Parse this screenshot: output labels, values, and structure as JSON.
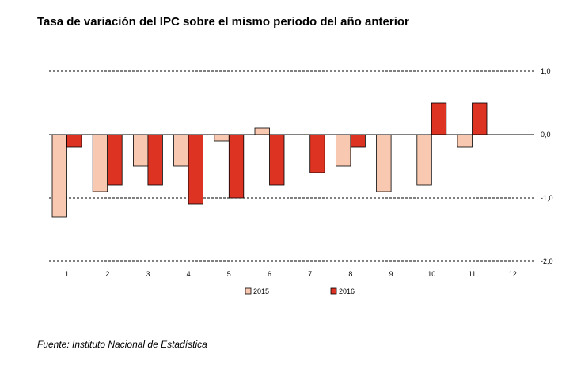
{
  "title": "Tasa de variación del IPC sobre el mismo periodo del año anterior",
  "source": "Fuente: Instituto Nacional de Estadística",
  "colors": {
    "s2015": "#f9c8b0",
    "s2016": "#dd3322",
    "stroke": "#000000"
  },
  "chart_data": {
    "type": "bar",
    "title": "Tasa de variación del IPC sobre el mismo periodo del año anterior",
    "xlabel": "",
    "ylabel": "",
    "categories": [
      "1",
      "2",
      "3",
      "4",
      "5",
      "6",
      "7",
      "8",
      "9",
      "10",
      "11",
      "12"
    ],
    "series": [
      {
        "name": "2015",
        "values": [
          -1.3,
          -0.9,
          -0.5,
          -0.5,
          -0.1,
          0.1,
          null,
          -0.5,
          -0.9,
          -0.8,
          -0.2,
          null
        ]
      },
      {
        "name": "2016",
        "values": [
          -0.2,
          -0.8,
          -0.8,
          -1.1,
          -1.0,
          -0.8,
          -0.6,
          -0.2,
          null,
          0.5,
          0.5,
          null
        ]
      }
    ],
    "ylim": [
      -2.0,
      1.0
    ],
    "yticks": [
      1.0,
      0.0,
      -1.0,
      -2.0
    ],
    "ytick_labels": [
      "1,0",
      "0,0",
      "-1,0",
      "-2,0"
    ],
    "grid": "dashed-horizontal",
    "y_axis_side": "right",
    "legend": "bottom-center"
  }
}
